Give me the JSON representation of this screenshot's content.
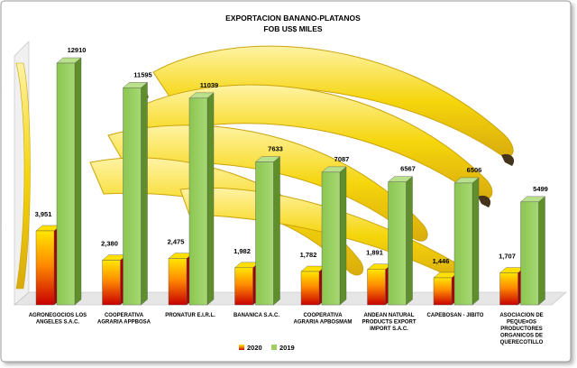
{
  "chart_data": {
    "type": "bar",
    "title": "EXPORTACION  BANANO-PLATANOS",
    "subtitle": "FOB US$ MILES",
    "categories": [
      [
        "AGRONEGOCIOS LOS",
        "ANGELES S.A.C."
      ],
      [
        "COOPERATIVA",
        "AGRARIA APPBOSA"
      ],
      [
        "PRONATUR E.I.R.L."
      ],
      [
        "BANANICA  S.A.C."
      ],
      [
        "COOPERATIVA",
        "AGRARIA APBOSMAM"
      ],
      [
        "ANDEAN NATURAL",
        "PRODUCTS EXPORT",
        "IMPORT S.A.C."
      ],
      [
        "CAPEBOSAN - JIBITO"
      ],
      [
        "ASOCIACION DE",
        "PEQUE¤OS",
        "PRODUCTORES",
        "ORGANICOS DE",
        "QUERECOTILLO"
      ]
    ],
    "series": [
      {
        "name": "2020",
        "values": [
          3951,
          2380,
          2475,
          1982,
          1782,
          1891,
          1446,
          1707
        ],
        "labels": [
          "3,951",
          "2,380",
          "2,475",
          "1,982",
          "1,782",
          "1,891",
          "1,446",
          "1,707"
        ],
        "color_top": "#ffe000",
        "color_bottom": "#cc0000"
      },
      {
        "name": "2019",
        "values": [
          12910,
          11595,
          11039,
          7633,
          7087,
          6567,
          6506,
          5499
        ],
        "labels": [
          "12910",
          "11595",
          "11039",
          "7633",
          "7087",
          "6567",
          "6506",
          "5499"
        ],
        "color_top": "#9dd061",
        "color_bottom": "#7fbf3f"
      }
    ],
    "ylim": [
      0,
      14000
    ],
    "grid": false,
    "legend_position": "bottom"
  }
}
